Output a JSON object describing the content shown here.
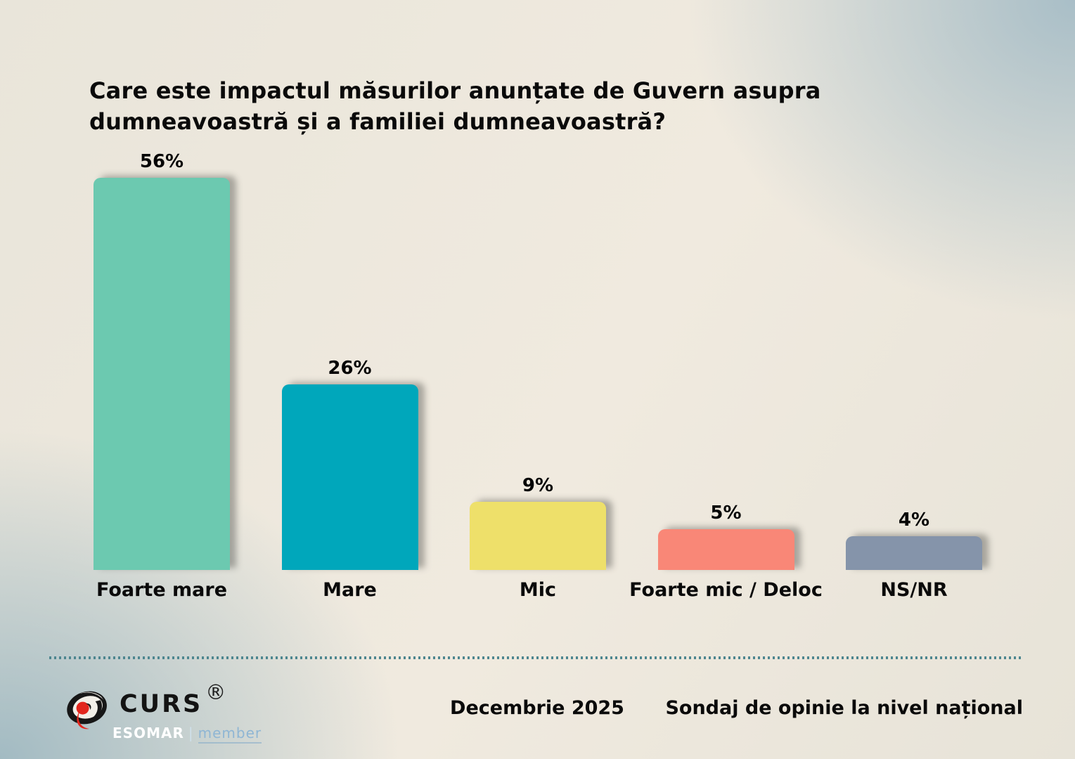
{
  "title": "Care este impactul măsurilor anunțate de Guvern asupra dumneavoastră și a familiei dumneavoastră?",
  "chart_data": {
    "type": "bar",
    "title": "Care este impactul măsurilor anunțate de Guvern asupra dumneavoastră și a familiei dumneavoastră?",
    "categories": [
      "Foarte mare",
      "Mare",
      "Mic",
      "Foarte mic / Deloc",
      "NS/NR"
    ],
    "values": [
      56,
      26,
      9,
      5,
      4
    ],
    "value_labels": [
      "56%",
      "26%",
      "9%",
      "5%",
      "4%"
    ],
    "bar_colors": [
      "#6cc9b0",
      "#00a7bb",
      "#eee06a",
      "#f98777",
      "#8594aa"
    ],
    "xlabel": "",
    "ylabel": "",
    "ylim": [
      0,
      60
    ],
    "grid": false,
    "legend": false,
    "data_labels_position": "above-bar"
  },
  "footer": {
    "logo_text": "CURS",
    "registered_mark": "®",
    "esomar": "ESOMAR",
    "esomar_sep": "|",
    "esomar_member": "member",
    "date": "Decembrie 2025",
    "note": "Sondaj de opinie la nivel național"
  },
  "colors": {
    "divider_dots": "#4d868f",
    "text": "#0a0a0a",
    "logo_red": "#e2261d",
    "logo_black": "#171717",
    "esomar_white": "#ffffff",
    "esomar_member_blue": "#8fb6d4"
  }
}
